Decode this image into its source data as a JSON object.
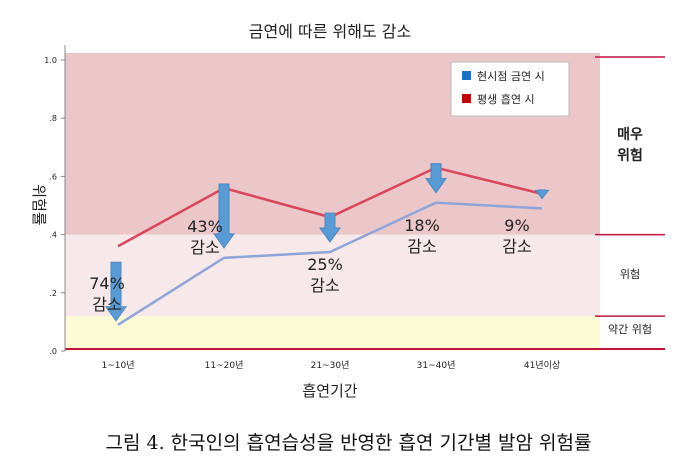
{
  "caption": "그림 4. 한국인의 흡연습성을 반영한 흡연 기간별 발암 위험률",
  "chart_data": {
    "type": "line",
    "title": "금연에 따른 위해도 감소",
    "xlabel": "흡연기간",
    "ylabel": "위험률",
    "categories": [
      "1~10년",
      "11~20년",
      "21~30년",
      "31~40년",
      "41년이상"
    ],
    "ylim": [
      0,
      1.0
    ],
    "yticks": [
      0,
      0.2,
      0.4,
      0.6,
      0.8,
      1.0
    ],
    "ytick_labels": [
      ".0",
      ".2",
      ".4",
      ".6",
      ".8",
      "1.0"
    ],
    "series": [
      {
        "name": "현시점 금연 시",
        "color": "#8fa5d9",
        "values": [
          0.09,
          0.32,
          0.34,
          0.51,
          0.49
        ]
      },
      {
        "name": "평생 흡연 시",
        "color": "#d9455a",
        "values": [
          0.36,
          0.56,
          0.46,
          0.63,
          0.54
        ]
      }
    ],
    "legend_colors": [
      "#1f6fc5",
      "#c00000"
    ],
    "legend_position": "top-right",
    "bands": [
      {
        "label": "약간 위험",
        "from": 0.0,
        "to": 0.12,
        "color": "#fdfad6"
      },
      {
        "label": "위험",
        "from": 0.12,
        "to": 0.4,
        "color": "#f7e9e9"
      },
      {
        "label": "매우\n위험",
        "from": 0.4,
        "to": 1.0,
        "color": "#ecc7c9"
      }
    ],
    "annotations": [
      {
        "category": "1~10년",
        "pct": "74%",
        "text": "감소"
      },
      {
        "category": "11~20년",
        "pct": "43%",
        "text": "감소"
      },
      {
        "category": "21~30년",
        "pct": "25%",
        "text": "감소"
      },
      {
        "category": "31~40년",
        "pct": "18%",
        "text": "감소"
      },
      {
        "category": "41년이상",
        "pct": "9%",
        "text": "감소"
      }
    ],
    "arrow_color": "#5b9bd5",
    "band_line_color": "#c0143c"
  }
}
